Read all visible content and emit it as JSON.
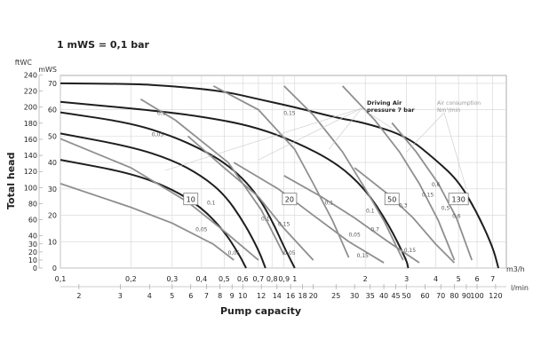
{
  "chart_data": {
    "type": "line",
    "title": "1 mWS = 0,1 bar",
    "ylabel": "Total head",
    "xlabel": "Pump capacity",
    "y_units": {
      "ftwc": "ftWC",
      "mws": "mWS"
    },
    "x_units": {
      "m3h": "m3/h",
      "lmin": "l/min"
    },
    "x_scale": "log",
    "xlim": [
      0.1,
      8
    ],
    "ylim": [
      0,
      73
    ],
    "grid": true,
    "ftwc_ticks": [
      "0",
      "10",
      "20",
      "30",
      "40",
      "60",
      "80",
      "100",
      "120",
      "140",
      "160",
      "180",
      "200",
      "220",
      "240"
    ],
    "ftwc_values": [
      0,
      10,
      20,
      30,
      40,
      60,
      80,
      100,
      120,
      140,
      160,
      180,
      200,
      220,
      240
    ],
    "mws_ticks": [
      "0",
      "10",
      "20",
      "30",
      "40",
      "50",
      "60",
      "70"
    ],
    "mws_values": [
      0,
      10,
      20,
      30,
      40,
      50,
      60,
      70
    ],
    "m3h_ticks": [
      "0,1",
      "0,2",
      "0,3",
      "0,4",
      "0,5",
      "0,6",
      "0,7",
      "0,8",
      "0,9",
      "1",
      "2",
      "3",
      "4",
      "5",
      "6",
      "7"
    ],
    "m3h_values": [
      0.1,
      0.2,
      0.3,
      0.4,
      0.5,
      0.6,
      0.7,
      0.8,
      0.9,
      1,
      2,
      3,
      4,
      5,
      6,
      7
    ],
    "lmin_ticks": [
      "2",
      "3",
      "4",
      "5",
      "6",
      "7",
      "8",
      "9",
      "10",
      "12",
      "14",
      "16",
      "18",
      "20",
      "25",
      "30",
      "35",
      "40",
      "45",
      "50",
      "60",
      "70",
      "80",
      "90",
      "100",
      "120"
    ],
    "lmin_values": [
      2,
      3,
      4,
      5,
      6,
      7,
      8,
      9,
      10,
      12,
      14,
      16,
      18,
      20,
      25,
      30,
      35,
      40,
      45,
      50,
      60,
      70,
      80,
      90,
      100,
      120
    ],
    "series": [
      {
        "x": [
          0.1,
          0.2,
          0.3,
          0.4,
          0.5,
          0.58,
          0.62
        ],
        "y": [
          41,
          36,
          30,
          23,
          14,
          5,
          0
        ]
      },
      {
        "x": [
          0.1,
          0.2,
          0.3,
          0.4,
          0.5,
          0.6,
          0.7,
          0.75
        ],
        "y": [
          51,
          46,
          41,
          35,
          28,
          18,
          7,
          0
        ]
      },
      {
        "x": [
          0.1,
          0.2,
          0.3,
          0.4,
          0.5,
          0.6,
          0.7,
          0.8,
          0.9,
          1.0
        ],
        "y": [
          59,
          55,
          50,
          45,
          40,
          34,
          27,
          18,
          8,
          0
        ]
      },
      {
        "x": [
          0.1,
          0.3,
          0.5,
          0.7,
          1.0,
          1.5,
          2.0,
          2.5,
          3.0,
          3.05
        ],
        "y": [
          63,
          59,
          56,
          53,
          48,
          40,
          30,
          17,
          3,
          0
        ]
      },
      {
        "x": [
          0.1,
          0.2,
          0.3,
          0.5,
          0.7,
          1.0,
          1.5,
          2.0,
          3.0,
          4.0,
          5.0,
          6.0,
          7.0,
          7.4
        ],
        "y": [
          70,
          69.8,
          69,
          67,
          64,
          61,
          57,
          55,
          50,
          41,
          33,
          21,
          8,
          0
        ]
      }
    ],
    "size_labels": [
      "10",
      "20",
      "50",
      "130"
    ],
    "air_consumption_labels": [
      "0,1",
      "0,05",
      "0,1",
      "0,05",
      "0,05",
      "0,1",
      "0,15",
      "0,05",
      "0,15",
      "0,1",
      "0,05",
      "0,15",
      "0,1",
      "0,7",
      "0,15",
      "0,3",
      "0,6",
      "0,15",
      "0,5",
      "0,6"
    ],
    "annotations": {
      "driving_air": "Driving Air\npressure 7 bar",
      "air_consumption": "Air consumption\nNm³/min"
    }
  }
}
